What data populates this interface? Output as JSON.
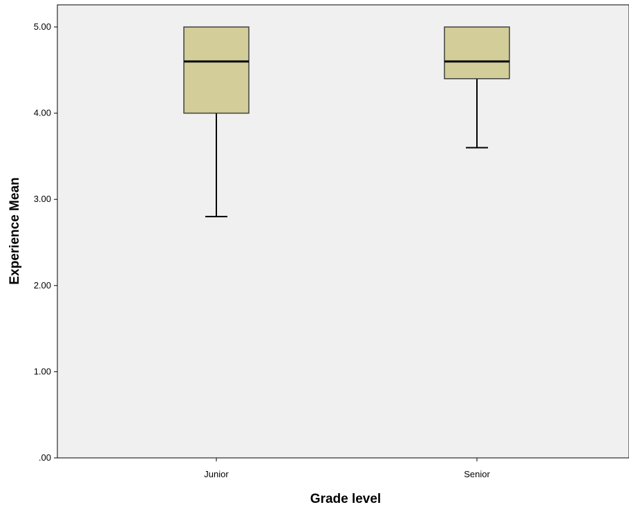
{
  "chart_data": {
    "type": "boxplot",
    "title": "",
    "xlabel": "Grade level",
    "ylabel": "Experience Mean",
    "ylim": [
      0,
      5.25
    ],
    "y_ticks": [
      0,
      1,
      2,
      3,
      4,
      5
    ],
    "y_tick_labels": [
      ".00",
      "1.00",
      "2.00",
      "3.00",
      "4.00",
      "5.00"
    ],
    "grid": false,
    "categories": [
      "Junior",
      "Senior"
    ],
    "boxes": [
      {
        "category": "Junior",
        "min": 2.8,
        "q1": 4.0,
        "median": 4.6,
        "q3": 5.0,
        "max": 5.0
      },
      {
        "category": "Senior",
        "min": 3.6,
        "q1": 4.4,
        "median": 4.6,
        "q3": 5.0,
        "max": 5.0
      }
    ],
    "colors": {
      "box_fill": "#d3cd99",
      "plot_background": "#f0f0f0",
      "line": "#000000",
      "box_edge": "#404040"
    }
  }
}
